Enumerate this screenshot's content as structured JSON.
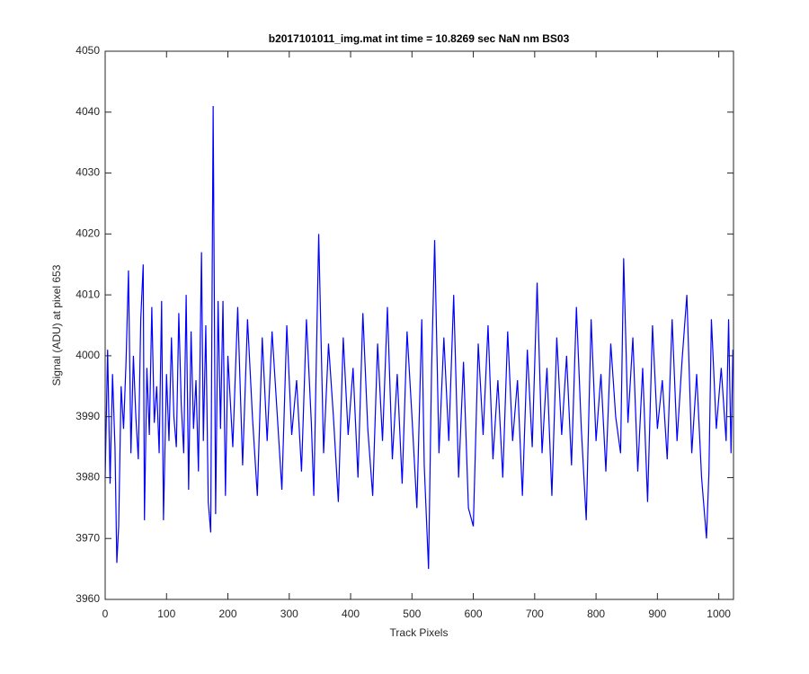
{
  "chart_data": {
    "type": "line",
    "title": "b2017101011_img.mat int time = 10.8269 sec  NaN nm BS03",
    "x_label": "Track Pixels",
    "y_label": "Signal (ADU) at pixel 653",
    "color": "#0000ff",
    "xlim": [
      0,
      1024
    ],
    "ylim": [
      3960,
      4050
    ],
    "xticks": [
      0,
      100,
      200,
      300,
      400,
      500,
      600,
      700,
      800,
      900,
      1000
    ],
    "yticks": [
      3960,
      3970,
      3980,
      3990,
      4000,
      4010,
      4020,
      4030,
      4040,
      4050
    ],
    "x": [
      0,
      4,
      8,
      12,
      16,
      19,
      22,
      26,
      30,
      34,
      38,
      42,
      46,
      50,
      54,
      58,
      62,
      64,
      68,
      72,
      76,
      80,
      84,
      88,
      92,
      95,
      100,
      104,
      108,
      112,
      116,
      120,
      124,
      128,
      132,
      136,
      140,
      144,
      148,
      152,
      157,
      160,
      164,
      168,
      172,
      176,
      180,
      184,
      188,
      192,
      196,
      200,
      208,
      216,
      224,
      232,
      240,
      248,
      256,
      264,
      272,
      280,
      288,
      296,
      304,
      312,
      320,
      328,
      336,
      340,
      348,
      356,
      364,
      372,
      380,
      388,
      396,
      404,
      412,
      420,
      428,
      436,
      444,
      452,
      460,
      468,
      476,
      484,
      492,
      500,
      508,
      516,
      520,
      527,
      532,
      537,
      544,
      552,
      560,
      568,
      576,
      584,
      592,
      600,
      608,
      616,
      624,
      632,
      640,
      648,
      656,
      664,
      672,
      680,
      688,
      696,
      704,
      712,
      720,
      728,
      736,
      744,
      752,
      760,
      768,
      776,
      784,
      792,
      800,
      808,
      816,
      824,
      832,
      840,
      845,
      852,
      860,
      868,
      876,
      884,
      892,
      900,
      908,
      916,
      924,
      932,
      940,
      948,
      956,
      964,
      972,
      980,
      984,
      988,
      996,
      1004,
      1012,
      1016,
      1020,
      1023
    ],
    "values": [
      3980,
      4001,
      3979,
      3997,
      3985,
      3966,
      3972,
      3995,
      3988,
      3999,
      4014,
      3984,
      4000,
      3990,
      3983,
      4006,
      4015,
      3973,
      3998,
      3987,
      4008,
      3989,
      3995,
      3984,
      4009,
      3973,
      3997,
      3986,
      4003,
      3990,
      3985,
      4007,
      3992,
      3984,
      4010,
      3978,
      4004,
      3988,
      3996,
      3981,
      4017,
      3986,
      4005,
      3976,
      3971,
      4041,
      3974,
      4009,
      3988,
      4009,
      3977,
      4000,
      3985,
      4008,
      3982,
      4006,
      3990,
      3977,
      4003,
      3986,
      4004,
      3991,
      3978,
      4005,
      3987,
      3996,
      3981,
      4006,
      3989,
      3977,
      4020,
      3984,
      4002,
      3990,
      3976,
      4003,
      3987,
      3998,
      3980,
      4007,
      3988,
      3977,
      4002,
      3986,
      4008,
      3983,
      3997,
      3979,
      4004,
      3990,
      3975,
      4006,
      3982,
      3965,
      3998,
      4019,
      3984,
      4003,
      3986,
      4010,
      3980,
      3999,
      3975,
      3972,
      4002,
      3987,
      4005,
      3983,
      3996,
      3980,
      4004,
      3986,
      3996,
      3977,
      4001,
      3985,
      4012,
      3984,
      3998,
      3977,
      4003,
      3987,
      4000,
      3982,
      4008,
      3988,
      3973,
      4006,
      3986,
      3997,
      3981,
      4002,
      3990,
      3984,
      4016,
      3989,
      4003,
      3981,
      3998,
      3976,
      4005,
      3988,
      3996,
      3983,
      4006,
      3986,
      3999,
      4010,
      3984,
      3997,
      3980,
      3970,
      3981,
      4006,
      3988,
      3998,
      3986,
      4006,
      3984,
      4001
    ]
  }
}
